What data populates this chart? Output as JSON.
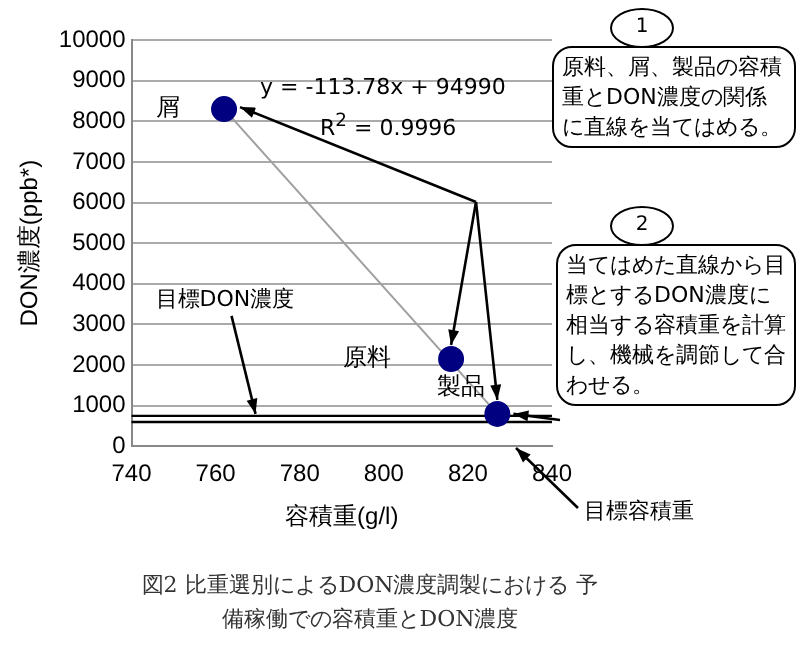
{
  "chart_data": {
    "type": "scatter",
    "title": "図2 比重選別によるDON濃度調製における 予備稼働での容積重とDON濃度",
    "xlabel": "容積重(g/l)",
    "ylabel": "DON濃度(ppb*)",
    "xlim": [
      740,
      840
    ],
    "xticks": [
      740,
      760,
      780,
      800,
      820,
      840
    ],
    "ylim": [
      0,
      10000
    ],
    "yticks": [
      0,
      1000,
      2000,
      3000,
      4000,
      5000,
      6000,
      7000,
      8000,
      9000,
      10000
    ],
    "grid": "y",
    "legend": false,
    "marker": "circle",
    "series": [
      {
        "type": "line",
        "marker": "none",
        "color": "#a0a0a0",
        "x": [
          762,
          827
        ],
        "values": [
          8300,
          800
        ]
      },
      {
        "color": "#000080",
        "x": [
          762,
          816,
          827
        ],
        "values": [
          8300,
          2150,
          800
        ]
      }
    ],
    "ref_lines": [
      {
        "axis": "y",
        "value": 750,
        "label": "目標DON濃度",
        "color": "#000000"
      },
      {
        "axis": "y",
        "value": 600,
        "color": "#000000"
      }
    ],
    "annotations": [
      "y = -113.78x + 94990",
      "R$^{2}$ = 0.9996",
      "1",
      "原料、屑、製品の容積重とDON濃度の関係に直線を当てはめる。",
      "2",
      {
        "text": "当てはめた直線から目標とするDON濃度に相当する容積重を計算し、機械を調節して合わせる。",
        "x": 827,
        "y": 800
      },
      "目標容積重",
      {
        "text": "屑",
        "x": 762,
        "y": 8300
      },
      {
        "text": "原料",
        "x": 816,
        "y": 2150
      },
      {
        "text": "製品",
        "x": 827,
        "y": 800
      }
    ]
  }
}
